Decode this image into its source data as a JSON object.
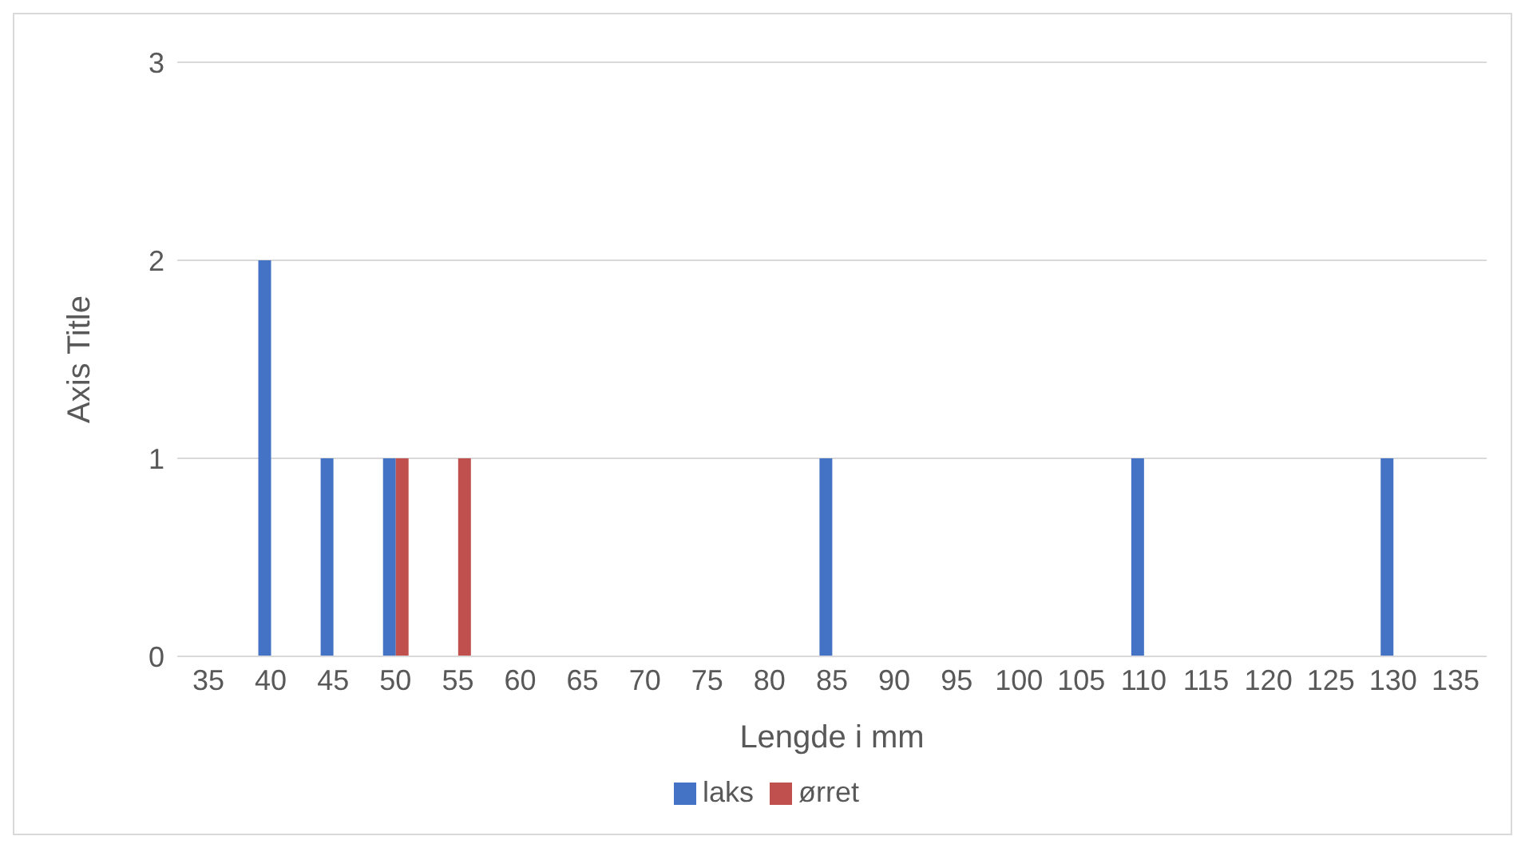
{
  "chart_data": {
    "type": "bar",
    "xlabel": "Lengde i mm",
    "ylabel": "Axis Title",
    "categories": [
      "35",
      "40",
      "45",
      "50",
      "55",
      "60",
      "65",
      "70",
      "75",
      "80",
      "85",
      "90",
      "95",
      "100",
      "105",
      "110",
      "115",
      "120",
      "125",
      "130",
      "135"
    ],
    "series": [
      {
        "name": "laks",
        "color": "#4472c4",
        "values": [
          0,
          2,
          1,
          1,
          0,
          0,
          0,
          0,
          0,
          0,
          1,
          0,
          0,
          0,
          0,
          1,
          0,
          0,
          0,
          1,
          0
        ]
      },
      {
        "name": "ørret",
        "color": "#c0504d",
        "values": [
          0,
          0,
          0,
          1,
          1,
          0,
          0,
          0,
          0,
          0,
          0,
          0,
          0,
          0,
          0,
          0,
          0,
          0,
          0,
          0,
          0
        ]
      }
    ],
    "ylim": [
      0,
      3
    ],
    "yticks": [
      0,
      1,
      2,
      3
    ],
    "grid": "y",
    "legend": "bottom"
  }
}
